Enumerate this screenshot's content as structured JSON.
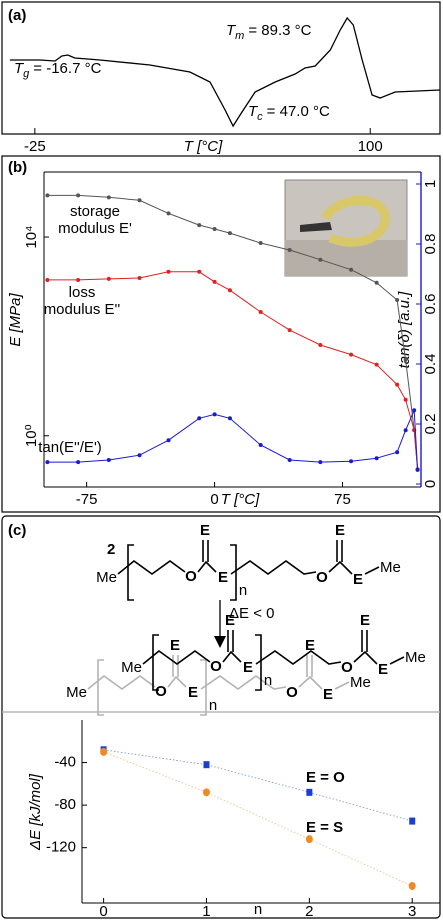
{
  "chart_data": [
    {
      "type": "line",
      "panel_label": "(a)",
      "xlabel": "T [°C]",
      "x": [
        -34.3,
        -23.1,
        -17.5,
        -14.9,
        -12.7,
        -10.1,
        -0.7,
        17.9,
        32.8,
        40.3,
        45.9,
        48.9,
        52.2,
        57.1,
        64.6,
        72,
        75.7,
        79.5,
        85.1,
        88.8,
        91.4,
        93.7,
        97,
        100.7,
        103.7,
        109.3,
        126
      ],
      "values": [
        56,
        56,
        55.2,
        59.2,
        60,
        57.6,
        56,
        52,
        46.4,
        38.4,
        16,
        3.2,
        14.4,
        30.4,
        38.4,
        44.8,
        49.6,
        51.2,
        64,
        80,
        89.6,
        84,
        56,
        28,
        25.6,
        30.4,
        32
      ],
      "color": "#000000",
      "xlim": [
        -35,
        126
      ],
      "ylim": [
        0,
        100
      ],
      "xticks": [
        -25,
        100
      ],
      "annotations": [
        {
          "symbol": "T",
          "subscript": "g",
          "text": "= -16.7 °C"
        },
        {
          "symbol": "T",
          "subscript": "m",
          "text": "= 89.3 °C"
        },
        {
          "symbol": "T",
          "subscript": "c",
          "text": "= 47.0 °C"
        }
      ]
    },
    {
      "type": "line",
      "panel_label": "(b)",
      "xlabel": "T [°C]",
      "ylabel": "E [MPa]",
      "y2label": "tan(δ) [a.u.]",
      "x": [
        -98,
        -80,
        -62,
        -44,
        -27,
        -9,
        0,
        9,
        27,
        44,
        62,
        80,
        95,
        107,
        112,
        117,
        119
      ],
      "series": [
        {
          "name": "storage modulus E'",
          "color": "#555555",
          "values": [
            69000,
            69000,
            63000,
            55000,
            30000,
            17400,
            14500,
            12000,
            7600,
            5500,
            3500,
            2200,
            1200,
            540,
            34,
            1.3,
            0.21
          ]
        },
        {
          "name": "loss modulus E''",
          "color": "#e02020",
          "values": [
            1370,
            1370,
            1440,
            1500,
            2000,
            2000,
            1250,
            850,
            310,
            134,
            67,
            43,
            27,
            10.7,
            5.3,
            1.3,
            0.21
          ]
        },
        {
          "name": "tan(E''/E')",
          "color": "#1a1ad0",
          "axis": "y2",
          "values": [
            0.073,
            0.073,
            0.08,
            0.096,
            0.146,
            0.219,
            0.232,
            0.219,
            0.13,
            0.08,
            0.073,
            0.076,
            0.086,
            0.106,
            0.179,
            0.246,
            0.047
          ]
        }
      ],
      "xlim": [
        -100,
        121
      ],
      "ylim": [
        0.093,
        204000
      ],
      "log_y": true,
      "y2lim": [
        -0.01,
        1.04
      ],
      "xticks": [
        -75,
        0,
        75
      ],
      "yticks": [
        {
          "value": 1,
          "label": "10⁰"
        },
        {
          "value": 10000,
          "label": "10⁴"
        }
      ],
      "y2ticks": [
        0,
        0.2,
        0.4,
        0.6,
        0.8,
        1
      ]
    },
    {
      "type": "scatter",
      "xlabel": "n",
      "ylabel": "ΔE [kJ/mol]",
      "x": [
        0,
        1,
        2,
        3
      ],
      "series": [
        {
          "name": "E = O",
          "color": "#1a3fd0",
          "marker": "square",
          "values": [
            -28,
            -42,
            -68,
            -95
          ]
        },
        {
          "name": "E = S",
          "color": "#f08a24",
          "marker": "circle",
          "values": [
            -30,
            -68,
            -112,
            -156
          ]
        }
      ],
      "xlim": [
        -0.21,
        3.27
      ],
      "ylim": [
        -172,
        0
      ],
      "xticks": [
        0,
        1,
        2,
        3
      ],
      "yticks": [
        -40,
        -80,
        -120
      ]
    }
  ],
  "scheme": {
    "panel_label": "(c)",
    "compound": "2",
    "condition": "ΔE < 0",
    "reactant": [
      "Me",
      "O",
      "E",
      "E",
      "n",
      "O",
      "E",
      "E",
      "Me"
    ],
    "product": [
      "Me",
      "O",
      "E",
      "E",
      "n",
      "O",
      "E",
      "E",
      "Me"
    ],
    "shadow": [
      "Me",
      "O",
      "E",
      "E",
      "n",
      "O",
      "E",
      "E",
      "Me"
    ]
  }
}
